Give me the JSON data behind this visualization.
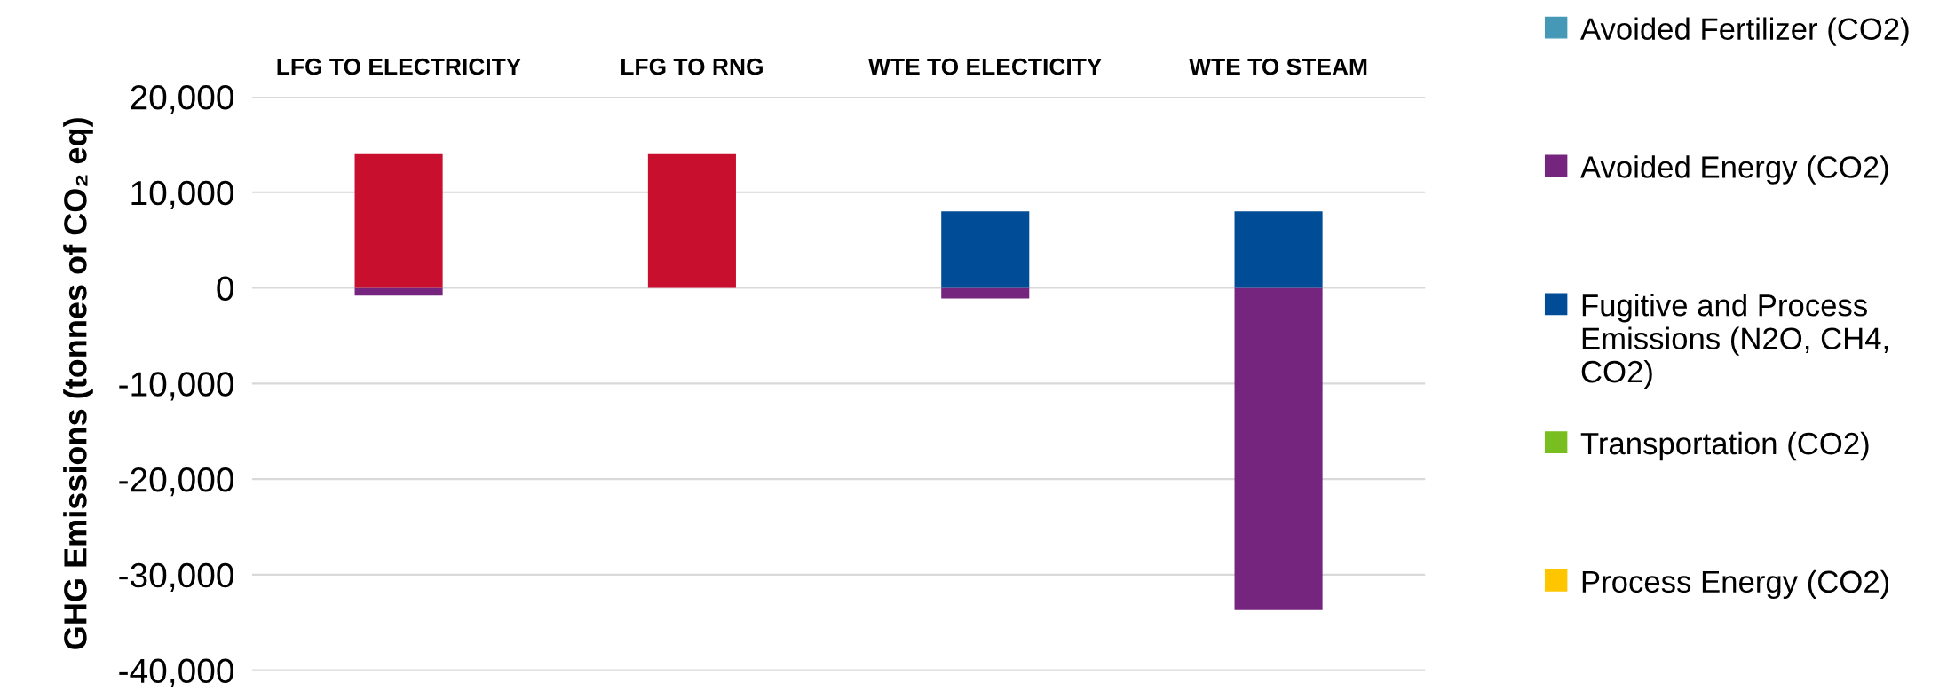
{
  "chart_data": {
    "type": "bar",
    "stacked": true,
    "ylabel": "GHG Emissions (tonnes of CO₂ eq)",
    "categories": [
      "LFG TO ELECTRICITY",
      "LFG TO RNG",
      "WTE TO ELECTICITY",
      "WTE TO STEAM"
    ],
    "series": [
      {
        "name": "Avoided Fertilizer (CO2)",
        "color": "#4599b6",
        "values": [
          0,
          0,
          0,
          0
        ]
      },
      {
        "name": "Avoided Energy (CO2)",
        "color": "#76257f",
        "values": [
          -800,
          0,
          -1100,
          -33700
        ]
      },
      {
        "name": "Fugitive and Process Emissions (N2O, CH4, CO2)",
        "color": "#004c97",
        "values": [
          0,
          0,
          8000,
          8000
        ]
      },
      {
        "name": "Transportation (CO2)",
        "color": "#78be20",
        "values": [
          0,
          0,
          0,
          0
        ]
      },
      {
        "name": "Process Energy (CO2)",
        "color": "#ffc600",
        "values": [
          0,
          0,
          0,
          0
        ]
      },
      {
        "color": "#c8102e",
        "values": [
          14000,
          14000,
          0,
          0
        ]
      }
    ],
    "ylim": [
      -40000,
      20000
    ],
    "yticks": [
      {
        "value": -40000,
        "label": "-40,000"
      },
      {
        "value": -30000,
        "label": "-30,000"
      },
      {
        "value": -20000,
        "label": "-20,000"
      },
      {
        "value": -10000,
        "label": "-10,000"
      },
      0,
      {
        "value": 10000,
        "label": "10,000"
      },
      {
        "value": 20000,
        "label": "20,000"
      }
    ],
    "grid": "y",
    "legend": "right"
  }
}
